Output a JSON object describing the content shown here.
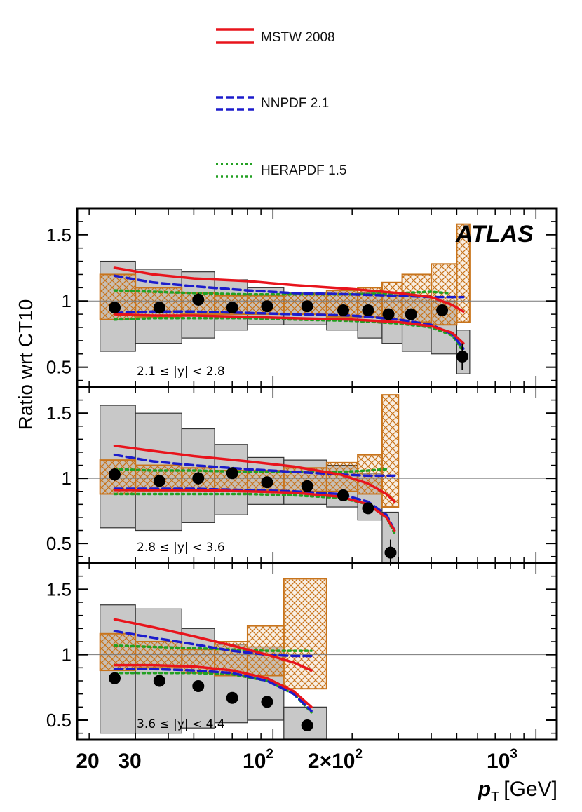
{
  "chart_data": {
    "type": "line",
    "experiment_label": "ATLAS",
    "ylabel": "Ratio wrt CT10",
    "xlabel_main": "p",
    "xlabel_sub": "T",
    "xlabel_unit": "[GeV]",
    "xscale": "log",
    "xlim": [
      18,
      1200
    ],
    "ylim": [
      0.35,
      1.7
    ],
    "x_tick_labels": [
      {
        "value": 20,
        "text": "20"
      },
      {
        "value": 30,
        "text": "30"
      },
      {
        "value": 100,
        "base": "10",
        "exp": "2"
      },
      {
        "value": 200,
        "base": "2×10",
        "exp": "2"
      },
      {
        "value": 1000,
        "base": "10",
        "exp": "3"
      }
    ],
    "y_tick_labels": [
      {
        "value": 0.5,
        "text": "0.5"
      },
      {
        "value": 1.0,
        "text": "1"
      },
      {
        "value": 1.5,
        "text": "1.5"
      }
    ],
    "legend": [
      {
        "name": "MSTW 2008",
        "style": "solid",
        "color": "#e8141c"
      },
      {
        "name": "NNPDF 2.1",
        "style": "dashed",
        "color": "#1c1ccc"
      },
      {
        "name": "HERAPDF 1.5",
        "style": "dotted",
        "color": "#22a022"
      }
    ],
    "colors": {
      "data_marker": "#000000",
      "exp_uncertainty_fill": "#c8c8c8",
      "theory_band": "#c8741c",
      "frame": "#000000"
    },
    "panels": [
      {
        "rapidity_text": "2.1 ≤ |y| < 2.8",
        "bin_edges": [
          22,
          30,
          45,
          60,
          80,
          110,
          160,
          210,
          260,
          310,
          400,
          500,
          560
        ],
        "exp_band": [
          [
            0.62,
            1.3
          ],
          [
            0.68,
            1.24
          ],
          [
            0.72,
            1.22
          ],
          [
            0.78,
            1.16
          ],
          [
            0.82,
            1.1
          ],
          [
            0.82,
            1.06
          ],
          [
            0.78,
            1.08
          ],
          [
            0.72,
            1.06
          ],
          [
            0.68,
            1.04
          ],
          [
            0.62,
            1.04
          ],
          [
            0.6,
            1.0
          ],
          [
            0.45,
            0.78
          ]
        ],
        "theory_band": [
          [
            0.86,
            1.2
          ],
          [
            0.88,
            1.1
          ],
          [
            0.9,
            1.06
          ],
          [
            0.9,
            1.04
          ],
          [
            0.9,
            1.04
          ],
          [
            0.9,
            1.05
          ],
          [
            0.88,
            1.08
          ],
          [
            0.88,
            1.1
          ],
          [
            0.86,
            1.14
          ],
          [
            0.84,
            1.2
          ],
          [
            0.82,
            1.28
          ],
          [
            0.84,
            1.58
          ]
        ],
        "data_x": [
          25,
          37,
          52,
          70,
          95,
          135,
          185,
          230,
          275,
          335,
          440,
          525
        ],
        "data_y": [
          0.95,
          0.95,
          1.01,
          0.95,
          0.96,
          0.96,
          0.93,
          0.93,
          0.9,
          0.9,
          0.93,
          0.58
        ],
        "data_err": [
          0.04,
          0.03,
          0.05,
          0.03,
          0.03,
          0.03,
          0.03,
          0.03,
          0.03,
          0.03,
          0.04,
          0.1
        ],
        "mstw_upper": {
          "x": [
            25,
            35,
            50,
            80,
            120,
            200,
            300,
            400,
            480,
            530
          ],
          "y": [
            1.25,
            1.2,
            1.17,
            1.15,
            1.12,
            1.09,
            1.06,
            1.03,
            0.97,
            0.92
          ]
        },
        "mstw_lower": {
          "x": [
            25,
            35,
            50,
            80,
            120,
            200,
            300,
            400,
            480,
            530
          ],
          "y": [
            0.9,
            0.89,
            0.89,
            0.88,
            0.87,
            0.86,
            0.84,
            0.81,
            0.76,
            0.68
          ]
        },
        "nnpdf_upper": {
          "x": [
            25,
            35,
            50,
            80,
            120,
            200,
            300,
            400,
            480,
            530
          ],
          "y": [
            1.19,
            1.14,
            1.11,
            1.08,
            1.06,
            1.05,
            1.04,
            1.03,
            1.03,
            1.03
          ]
        },
        "nnpdf_lower": {
          "x": [
            25,
            35,
            50,
            80,
            120,
            200,
            300,
            400,
            480,
            530
          ],
          "y": [
            0.91,
            0.92,
            0.92,
            0.91,
            0.9,
            0.89,
            0.86,
            0.82,
            0.75,
            0.64
          ]
        },
        "hera_upper": {
          "x": [
            25,
            35,
            50,
            80,
            120,
            200,
            300,
            400,
            460
          ],
          "y": [
            1.08,
            1.07,
            1.06,
            1.05,
            1.05,
            1.05,
            1.06,
            1.07,
            1.06
          ]
        },
        "hera_lower": {
          "x": [
            25,
            35,
            50,
            80,
            120,
            200,
            300,
            400,
            480,
            530
          ],
          "y": [
            0.86,
            0.87,
            0.87,
            0.87,
            0.86,
            0.85,
            0.83,
            0.8,
            0.74,
            0.62
          ]
        }
      },
      {
        "rapidity_text": "2.8 ≤ |y| < 3.6",
        "bin_edges": [
          22,
          30,
          45,
          60,
          80,
          110,
          160,
          210,
          260,
          300
        ],
        "exp_band": [
          [
            0.62,
            1.56
          ],
          [
            0.6,
            1.5
          ],
          [
            0.66,
            1.38
          ],
          [
            0.72,
            1.26
          ],
          [
            0.8,
            1.16
          ],
          [
            0.8,
            1.14
          ],
          [
            0.78,
            1.1
          ],
          [
            0.68,
            1.04
          ],
          [
            0.32,
            0.74
          ]
        ],
        "theory_band": [
          [
            0.88,
            1.14
          ],
          [
            0.9,
            1.1
          ],
          [
            0.9,
            1.08
          ],
          [
            0.9,
            1.06
          ],
          [
            0.91,
            1.06
          ],
          [
            0.9,
            1.08
          ],
          [
            0.9,
            1.12
          ],
          [
            0.88,
            1.18
          ],
          [
            0.78,
            1.64
          ]
        ],
        "data_x": [
          25,
          37,
          52,
          70,
          95,
          135,
          185,
          230,
          280
        ],
        "data_y": [
          1.03,
          0.98,
          1.0,
          1.04,
          0.97,
          0.94,
          0.87,
          0.77,
          0.43
        ],
        "data_err": [
          0.05,
          0.04,
          0.05,
          0.04,
          0.04,
          0.04,
          0.03,
          0.03,
          0.1
        ],
        "mstw_upper": {
          "x": [
            25,
            35,
            50,
            80,
            120,
            180,
            230,
            270,
            290
          ],
          "y": [
            1.25,
            1.21,
            1.17,
            1.13,
            1.09,
            1.03,
            0.96,
            0.88,
            0.82
          ]
        },
        "mstw_lower": {
          "x": [
            25,
            35,
            50,
            80,
            120,
            180,
            230,
            270,
            290
          ],
          "y": [
            0.91,
            0.91,
            0.91,
            0.9,
            0.89,
            0.86,
            0.8,
            0.7,
            0.6
          ]
        },
        "nnpdf_upper": {
          "x": [
            25,
            35,
            50,
            80,
            120,
            180,
            230,
            270,
            290
          ],
          "y": [
            1.18,
            1.13,
            1.1,
            1.07,
            1.05,
            1.03,
            1.02,
            1.02,
            1.02
          ]
        },
        "nnpdf_lower": {
          "x": [
            25,
            35,
            50,
            80,
            120,
            180,
            230,
            270,
            290
          ],
          "y": [
            0.92,
            0.92,
            0.92,
            0.91,
            0.9,
            0.88,
            0.82,
            0.72,
            0.6
          ]
        },
        "hera_upper": {
          "x": [
            25,
            35,
            50,
            80,
            120,
            180,
            230,
            270
          ],
          "y": [
            1.07,
            1.06,
            1.06,
            1.05,
            1.05,
            1.05,
            1.06,
            1.07
          ]
        },
        "hera_lower": {
          "x": [
            25,
            35,
            50,
            80,
            120,
            180,
            230,
            270,
            290
          ],
          "y": [
            0.88,
            0.88,
            0.88,
            0.88,
            0.87,
            0.85,
            0.8,
            0.7,
            0.58
          ]
        }
      },
      {
        "rapidity_text": "3.6 ≤ |y| < 4.4",
        "bin_edges": [
          22,
          30,
          45,
          60,
          80,
          110,
          160
        ],
        "exp_band": [
          [
            0.4,
            1.38
          ],
          [
            0.4,
            1.35
          ],
          [
            0.44,
            1.2
          ],
          [
            0.48,
            1.08
          ],
          [
            0.5,
            1.06
          ],
          [
            0.28,
            0.6
          ]
        ],
        "theory_band": [
          [
            0.88,
            1.16
          ],
          [
            0.9,
            1.1
          ],
          [
            0.86,
            1.04
          ],
          [
            0.84,
            1.1
          ],
          [
            0.84,
            1.22
          ],
          [
            0.74,
            1.58
          ]
        ],
        "data_x": [
          25,
          37,
          52,
          70,
          95,
          135
        ],
        "data_y": [
          0.82,
          0.8,
          0.76,
          0.67,
          0.64,
          0.46
        ],
        "data_err": [
          0.03,
          0.03,
          0.03,
          0.03,
          0.03,
          0.04
        ],
        "mstw_upper": {
          "x": [
            25,
            35,
            50,
            70,
            95,
            120,
            140
          ],
          "y": [
            1.27,
            1.21,
            1.14,
            1.07,
            1.0,
            0.94,
            0.88
          ]
        },
        "mstw_lower": {
          "x": [
            25,
            35,
            50,
            70,
            95,
            120,
            140
          ],
          "y": [
            0.92,
            0.92,
            0.91,
            0.88,
            0.82,
            0.72,
            0.6
          ]
        },
        "nnpdf_upper": {
          "x": [
            25,
            35,
            50,
            70,
            95,
            120,
            140
          ],
          "y": [
            1.18,
            1.13,
            1.08,
            1.03,
            1.0,
            0.99,
            0.99
          ]
        },
        "nnpdf_lower": {
          "x": [
            25,
            35,
            50,
            70,
            95,
            120,
            140
          ],
          "y": [
            0.89,
            0.89,
            0.88,
            0.86,
            0.8,
            0.7,
            0.57
          ]
        },
        "hera_upper": {
          "x": [
            25,
            35,
            50,
            70,
            95,
            120,
            140
          ],
          "y": [
            1.07,
            1.06,
            1.05,
            1.04,
            1.03,
            1.03,
            1.03
          ]
        },
        "hera_lower": {
          "x": [
            25,
            35,
            50,
            70,
            95,
            120,
            140
          ],
          "y": [
            0.86,
            0.86,
            0.86,
            0.85,
            0.8,
            0.7,
            0.56
          ]
        }
      }
    ]
  }
}
